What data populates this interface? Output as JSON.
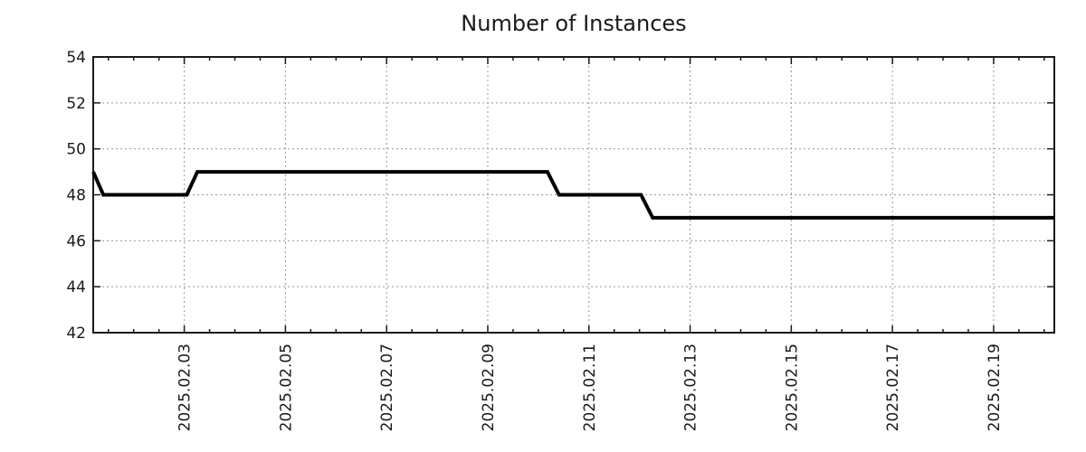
{
  "chart_data": {
    "type": "line",
    "title": "Number of Instances",
    "legend_position": "none",
    "grid": "dotted",
    "colors": {
      "background": "#ffffff",
      "grid": "#999999",
      "axis": "#1a1a1a",
      "text": "#1a1a1a",
      "line": "#000000"
    },
    "x_axis": {
      "unit": "day-of-February-2025",
      "min": 1.2,
      "max": 20.2,
      "minor_tick_step_days": 0.5,
      "major_ticks": [
        {
          "day": 3,
          "label": "2025.02.03"
        },
        {
          "day": 5,
          "label": "2025.02.05"
        },
        {
          "day": 7,
          "label": "2025.02.07"
        },
        {
          "day": 9,
          "label": "2025.02.09"
        },
        {
          "day": 11,
          "label": "2025.02.11"
        },
        {
          "day": 13,
          "label": "2025.02.13"
        },
        {
          "day": 15,
          "label": "2025.02.15"
        },
        {
          "day": 17,
          "label": "2025.02.17"
        },
        {
          "day": 19,
          "label": "2025.02.19"
        }
      ]
    },
    "y_axis": {
      "min": 42,
      "max": 54,
      "ticks": [
        {
          "value": 42,
          "label": "42"
        },
        {
          "value": 44,
          "label": "44"
        },
        {
          "value": 46,
          "label": "46"
        },
        {
          "value": 48,
          "label": "48"
        },
        {
          "value": 50,
          "label": "50"
        },
        {
          "value": 52,
          "label": "52"
        },
        {
          "value": 54,
          "label": "54"
        }
      ]
    },
    "series": [
      {
        "name": "Number of Instances",
        "color": "#000000",
        "line_width": 4,
        "points": [
          [
            1.2,
            49
          ],
          [
            1.4,
            48
          ],
          [
            3.05,
            48
          ],
          [
            3.26,
            49
          ],
          [
            10.18,
            49
          ],
          [
            10.41,
            48
          ],
          [
            12.03,
            48
          ],
          [
            12.26,
            47
          ],
          [
            20.2,
            47
          ]
        ]
      }
    ]
  }
}
